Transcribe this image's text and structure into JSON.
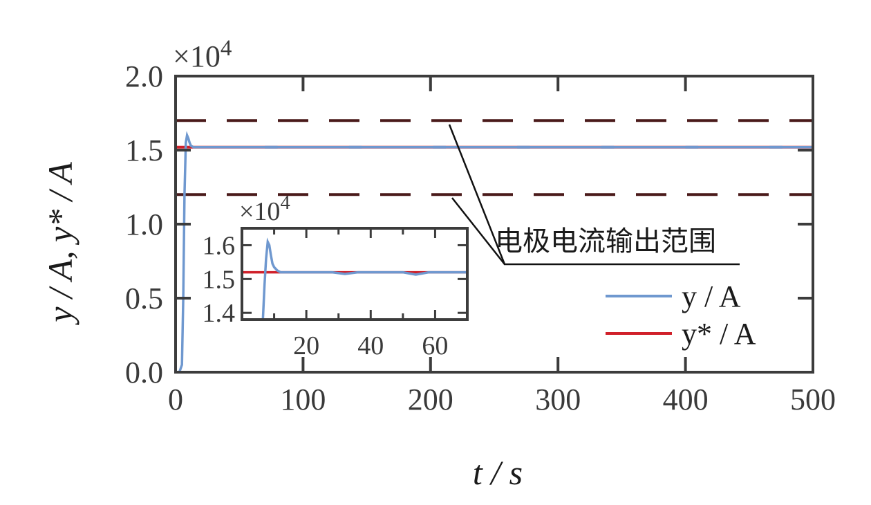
{
  "chart_data": [
    {
      "type": "line",
      "xlabel": "t / s",
      "ylabel": "y / A, y* / A",
      "y_multiplier": "×10^4",
      "xlim": [
        0,
        500
      ],
      "ylim": [
        0,
        20000
      ],
      "x_ticks": [
        0,
        100,
        200,
        300,
        400,
        500
      ],
      "x_tick_labels": [
        "0",
        "100",
        "200",
        "300",
        "400",
        "500"
      ],
      "y_ticks": [
        0,
        5000,
        10000,
        15000,
        20000
      ],
      "y_tick_labels": [
        "0.0",
        "0.5",
        "1.0",
        "1.5",
        "2.0"
      ],
      "grid": false,
      "legend_position": "lower-right",
      "series": [
        {
          "name": "y / A",
          "color": "#6f98cf",
          "x": [
            0,
            3,
            5,
            6,
            7,
            8,
            9,
            10,
            11,
            12,
            14,
            500
          ],
          "y": [
            0,
            0,
            500,
            5000,
            12000,
            15500,
            16000,
            15800,
            15500,
            15300,
            15200,
            15200
          ]
        },
        {
          "name": "y* / A",
          "color": "#d0202a",
          "x": [
            0,
            500
          ],
          "y": [
            15200,
            15200
          ]
        }
      ],
      "reference_lines": [
        {
          "y": 17000,
          "color": "#4a1a1a",
          "style": "dashed"
        },
        {
          "y": 12000,
          "color": "#4a1a1a",
          "style": "dashed"
        }
      ],
      "annotation": "电极电流输出范围"
    },
    {
      "type": "line",
      "role": "inset",
      "y_multiplier": "×10^4",
      "xlim": [
        0,
        70
      ],
      "ylim": [
        13800,
        16500
      ],
      "x_ticks": [
        20,
        40,
        60
      ],
      "x_tick_labels": [
        "20",
        "40",
        "60"
      ],
      "y_ticks": [
        14000,
        15000,
        16000
      ],
      "y_tick_labels": [
        "1.4",
        "1.5",
        "1.6"
      ],
      "series": [
        {
          "name": "y / A",
          "color": "#6f98cf",
          "x": [
            6.5,
            7,
            7.5,
            8,
            8.5,
            9,
            9.5,
            10,
            11,
            12,
            14,
            28,
            32,
            36,
            50,
            54,
            58,
            70
          ],
          "y": [
            13800,
            14800,
            15600,
            16100,
            16000,
            15700,
            15450,
            15350,
            15250,
            15200,
            15200,
            15200,
            15150,
            15200,
            15200,
            15130,
            15200,
            15200
          ]
        },
        {
          "name": "y* / A",
          "color": "#d0202a",
          "x": [
            0,
            70
          ],
          "y": [
            15200,
            15200
          ]
        }
      ]
    }
  ]
}
